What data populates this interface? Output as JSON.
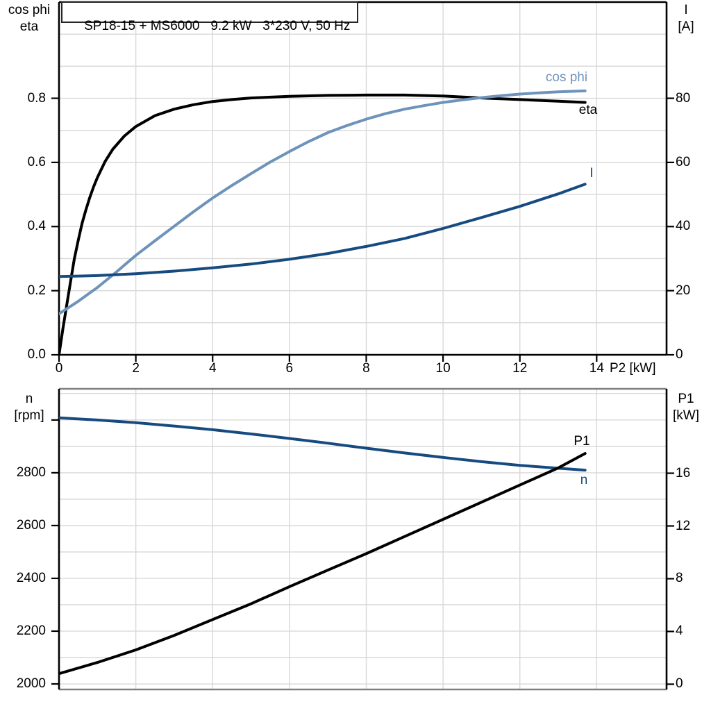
{
  "title": "SP18-15 + MS6000   9.2 kW   3*230 V, 50 Hz",
  "colors": {
    "steelblue": "#6e93ba",
    "navy": "#174b80",
    "black": "#000000",
    "grid": "#d8d8d8",
    "frame_gray": "#808080"
  },
  "labels": {
    "top_left_line1": "cos phi",
    "top_left_line2": "eta",
    "top_right_line1": "I",
    "top_right_line2": "[A]",
    "bottom_left_line1": "n",
    "bottom_left_line2": "[rpm]",
    "bottom_right_line1": "P1",
    "bottom_right_line2": "[kW]",
    "curve_cos_phi": "cos phi",
    "curve_eta": "eta",
    "curve_I": "I",
    "curve_P1": "P1",
    "curve_n": "n"
  },
  "chart_data": [
    {
      "type": "line",
      "title": "SP18-15 + MS6000   9.2 kW   3*230 V, 50 Hz",
      "xlabel": "P2 [kW]",
      "ylabel_left": "cos phi / eta",
      "ylabel_right": "I [A]",
      "xlim": [
        0,
        15.82
      ],
      "xticks": [
        0,
        2,
        4,
        6,
        8,
        10,
        12,
        14
      ],
      "xtick_labels": [
        "0",
        "2",
        "4",
        "6",
        "8",
        "10",
        "12",
        "14"
      ],
      "ylim_left": [
        0,
        1.1
      ],
      "yticks_left": [
        0,
        0.2,
        0.4,
        0.6,
        0.8
      ],
      "ytick_labels_left": [
        "0.0",
        "0.2",
        "0.4",
        "0.6",
        "0.8"
      ],
      "grid_step_left": 0.1,
      "ylim_right": [
        0,
        110
      ],
      "yticks_right": [
        0,
        20,
        40,
        60,
        80
      ],
      "ytick_labels_right": [
        "0",
        "20",
        "40",
        "60",
        "80"
      ],
      "grid": true,
      "legend_position": "inline-labels",
      "series": [
        {
          "name": "eta",
          "axis": "left",
          "color": "black",
          "points": [
            [
              0,
              0
            ],
            [
              0.1,
              0.08
            ],
            [
              0.2,
              0.155
            ],
            [
              0.3,
              0.228
            ],
            [
              0.4,
              0.3
            ],
            [
              0.5,
              0.357
            ],
            [
              0.6,
              0.41
            ],
            [
              0.7,
              0.452
            ],
            [
              0.8,
              0.49
            ],
            [
              0.9,
              0.524
            ],
            [
              1.0,
              0.553
            ],
            [
              1.2,
              0.603
            ],
            [
              1.4,
              0.641
            ],
            [
              1.7,
              0.682
            ],
            [
              2.0,
              0.712
            ],
            [
              2.5,
              0.746
            ],
            [
              3.0,
              0.766
            ],
            [
              3.5,
              0.78
            ],
            [
              4.0,
              0.79
            ],
            [
              4.5,
              0.796
            ],
            [
              5.0,
              0.801
            ],
            [
              6.0,
              0.806
            ],
            [
              7.0,
              0.809
            ],
            [
              8.0,
              0.81
            ],
            [
              9.0,
              0.81
            ],
            [
              10.0,
              0.807
            ],
            [
              11.0,
              0.801
            ],
            [
              12.0,
              0.796
            ],
            [
              13.0,
              0.791
            ],
            [
              13.7,
              0.787
            ]
          ]
        },
        {
          "name": "cos phi",
          "axis": "left",
          "color": "steelblue",
          "points": [
            [
              0,
              0.128
            ],
            [
              0.5,
              0.167
            ],
            [
              1.0,
              0.21
            ],
            [
              1.5,
              0.259
            ],
            [
              2.0,
              0.31
            ],
            [
              2.5,
              0.356
            ],
            [
              3.0,
              0.401
            ],
            [
              3.5,
              0.446
            ],
            [
              4.0,
              0.489
            ],
            [
              4.5,
              0.528
            ],
            [
              5.0,
              0.565
            ],
            [
              5.5,
              0.601
            ],
            [
              6.0,
              0.634
            ],
            [
              6.5,
              0.665
            ],
            [
              7.0,
              0.693
            ],
            [
              7.5,
              0.715
            ],
            [
              8.0,
              0.735
            ],
            [
              8.5,
              0.752
            ],
            [
              9.0,
              0.766
            ],
            [
              9.5,
              0.777
            ],
            [
              10.0,
              0.787
            ],
            [
              10.5,
              0.795
            ],
            [
              11.0,
              0.802
            ],
            [
              11.5,
              0.808
            ],
            [
              12.0,
              0.813
            ],
            [
              12.5,
              0.817
            ],
            [
              13.0,
              0.82
            ],
            [
              13.7,
              0.823
            ]
          ]
        },
        {
          "name": "I",
          "axis": "right",
          "color": "navy",
          "points": [
            [
              0,
              24.4
            ],
            [
              1,
              24.7
            ],
            [
              2,
              25.3
            ],
            [
              3,
              26.1
            ],
            [
              4,
              27.1
            ],
            [
              5,
              28.3
            ],
            [
              6,
              29.8
            ],
            [
              7,
              31.6
            ],
            [
              8,
              33.8
            ],
            [
              9,
              36.3
            ],
            [
              10,
              39.4
            ],
            [
              11,
              42.8
            ],
            [
              12,
              46.3
            ],
            [
              13,
              50.2
            ],
            [
              13.7,
              53.2
            ]
          ]
        }
      ]
    },
    {
      "type": "line",
      "title": "",
      "xlabel": "",
      "ylabel_left": "n [rpm]",
      "ylabel_right": "P1 [kW]",
      "xlim": [
        0,
        15.82
      ],
      "xticks": [
        0,
        2,
        4,
        6,
        8,
        10,
        12,
        14
      ],
      "xtick_labels": [],
      "ylim_left": [
        1979,
        3118
      ],
      "yticks_left": [
        2000,
        2200,
        2400,
        2600,
        2800,
        3000
      ],
      "ytick_labels_left": [
        "2000",
        "2200",
        "2400",
        "2600",
        "2800",
        ""
      ],
      "grid_step_left": 100,
      "ylim_right": [
        -0.4,
        22.4
      ],
      "yticks_right": [
        0,
        4,
        8,
        12,
        16
      ],
      "ytick_labels_right": [
        "0",
        "4",
        "8",
        "12",
        "16"
      ],
      "grid": true,
      "legend_position": "inline-labels",
      "series": [
        {
          "name": "n",
          "axis": "left",
          "color": "navy",
          "points": [
            [
              0,
              3008
            ],
            [
              1,
              3000
            ],
            [
              2,
              2990
            ],
            [
              3,
              2977
            ],
            [
              4,
              2963
            ],
            [
              5,
              2947
            ],
            [
              6,
              2930
            ],
            [
              7,
              2912
            ],
            [
              8,
              2893
            ],
            [
              9,
              2875
            ],
            [
              10,
              2858
            ],
            [
              11,
              2842
            ],
            [
              12,
              2828
            ],
            [
              13,
              2817
            ],
            [
              13.7,
              2810
            ]
          ]
        },
        {
          "name": "P1",
          "axis": "right",
          "color": "black",
          "points": [
            [
              0,
              0.8
            ],
            [
              1,
              1.65
            ],
            [
              2,
              2.6
            ],
            [
              3,
              3.7
            ],
            [
              4,
              4.9
            ],
            [
              5,
              6.1
            ],
            [
              6,
              7.4
            ],
            [
              7,
              8.65
            ],
            [
              8,
              9.9
            ],
            [
              9,
              11.2
            ],
            [
              10,
              12.5
            ],
            [
              11,
              13.8
            ],
            [
              12,
              15.1
            ],
            [
              13,
              16.4
            ],
            [
              13.7,
              17.5
            ]
          ]
        }
      ]
    }
  ]
}
